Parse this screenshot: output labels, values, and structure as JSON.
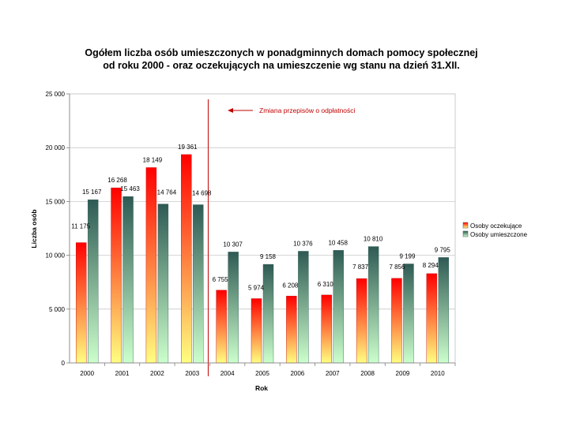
{
  "chart_data": {
    "type": "bar",
    "title": [
      "Ogółem liczba osób umieszczonych w ponadgminnych domach pomocy społecznej",
      "od roku 2000 - oraz oczekujących na umieszczenie wg stanu na dzień 31.XII."
    ],
    "xlabel": "Rok",
    "ylabel": "Liczba osób",
    "ylim": [
      0,
      25000
    ],
    "yticks": [
      0,
      5000,
      10000,
      15000,
      20000,
      25000
    ],
    "ytick_labels": [
      "0",
      "5 000",
      "10 000",
      "15 000",
      "20 000",
      "25 000"
    ],
    "categories": [
      "2000",
      "2001",
      "2002",
      "2003",
      "2004",
      "2005",
      "2006",
      "2007",
      "2008",
      "2009",
      "2010"
    ],
    "series": [
      {
        "name": "Osoby oczekujące",
        "values": [
          11175,
          16268,
          18149,
          19361,
          6755,
          5974,
          6208,
          6310,
          7837,
          7856,
          8294
        ],
        "labels": [
          "11 175",
          "16 268",
          "18 149",
          "19 361",
          "6 755",
          "5 974",
          "6 208",
          "6 310",
          "7 837",
          "7 856",
          "8 294"
        ],
        "color_top": "#ff0000",
        "color_bottom": "#ffff80"
      },
      {
        "name": "Osoby umieszczone",
        "values": [
          15167,
          15463,
          14764,
          14698,
          10307,
          9158,
          10376,
          10458,
          10810,
          9199,
          9795
        ],
        "labels": [
          "15 167",
          "15 463",
          "14 764",
          "14 698",
          "10 307",
          "9 158",
          "10 376",
          "10 458",
          "10 810",
          "9 199",
          "9 795"
        ],
        "color_top": "#2e5a54",
        "color_bottom": "#ccffcc"
      }
    ],
    "annotation": "Zmiana przepisów o odpłatności",
    "marker_line_between": [
      "2003",
      "2004"
    ],
    "marker_color": "#c00000",
    "legend_position": "right",
    "grid": true
  }
}
